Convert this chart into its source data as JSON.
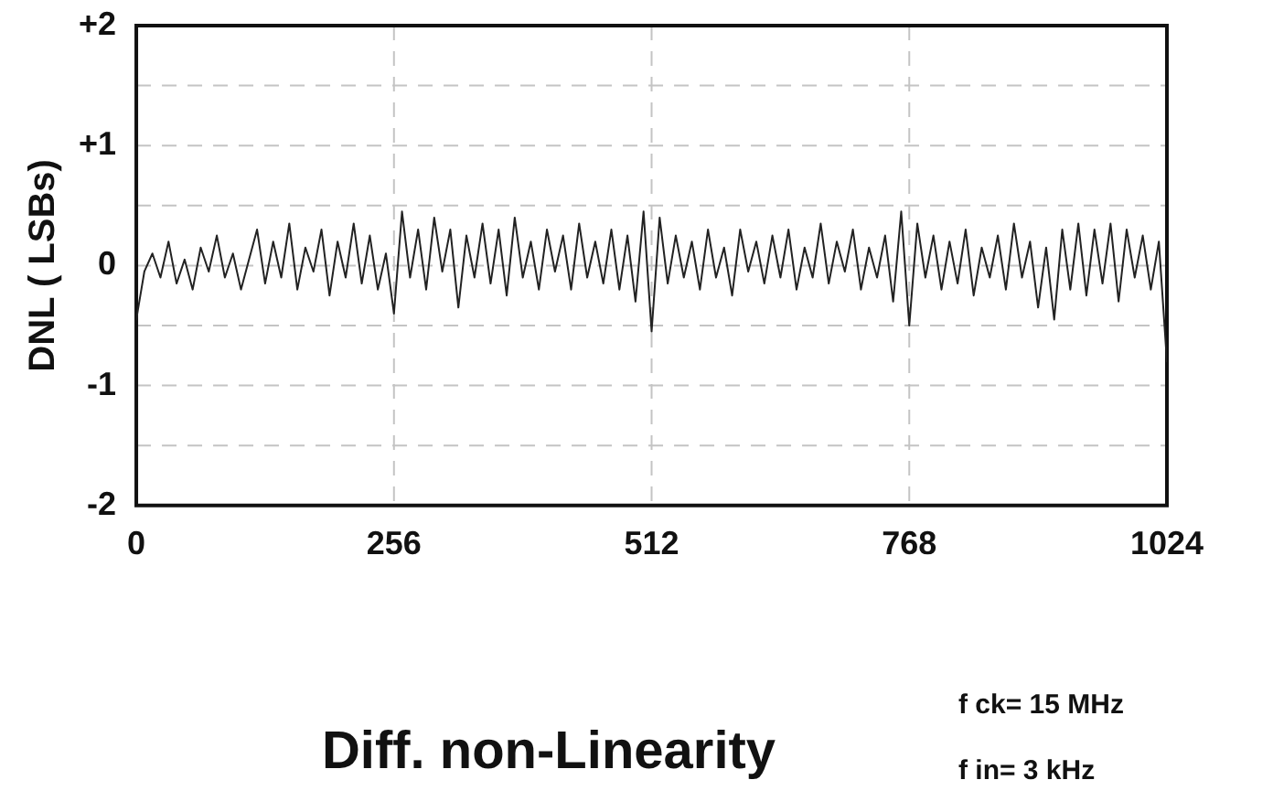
{
  "chart_data": {
    "type": "line",
    "title": "Diff. non-Linearity",
    "ylabel": "DNL ( LSBs)",
    "annotations": [
      "f ck= 15 MHz",
      "f in= 3 kHz"
    ],
    "x": [
      0,
      8,
      16,
      24,
      32,
      40,
      48,
      56,
      64,
      72,
      80,
      88,
      96,
      104,
      112,
      120,
      128,
      136,
      144,
      152,
      160,
      168,
      176,
      184,
      192,
      200,
      208,
      216,
      224,
      232,
      240,
      248,
      256,
      264,
      272,
      280,
      288,
      296,
      304,
      312,
      320,
      328,
      336,
      344,
      352,
      360,
      368,
      376,
      384,
      392,
      400,
      408,
      416,
      424,
      432,
      440,
      448,
      456,
      464,
      472,
      480,
      488,
      496,
      504,
      512,
      520,
      528,
      536,
      544,
      552,
      560,
      568,
      576,
      584,
      592,
      600,
      608,
      616,
      624,
      632,
      640,
      648,
      656,
      664,
      672,
      680,
      688,
      696,
      704,
      712,
      720,
      728,
      736,
      744,
      752,
      760,
      768,
      776,
      784,
      792,
      800,
      808,
      816,
      824,
      832,
      840,
      848,
      856,
      864,
      872,
      880,
      888,
      896,
      904,
      912,
      920,
      928,
      936,
      944,
      952,
      960,
      968,
      976,
      984,
      992,
      1000,
      1008,
      1016,
      1024
    ],
    "values": [
      -0.45,
      -0.05,
      0.1,
      -0.1,
      0.2,
      -0.15,
      0.05,
      -0.2,
      0.15,
      -0.05,
      0.25,
      -0.1,
      0.1,
      -0.2,
      0.05,
      0.3,
      -0.15,
      0.2,
      -0.1,
      0.35,
      -0.2,
      0.15,
      -0.05,
      0.3,
      -0.25,
      0.2,
      -0.1,
      0.35,
      -0.15,
      0.25,
      -0.2,
      0.1,
      -0.4,
      0.45,
      -0.1,
      0.3,
      -0.2,
      0.4,
      -0.05,
      0.3,
      -0.35,
      0.25,
      -0.1,
      0.35,
      -0.15,
      0.3,
      -0.25,
      0.4,
      -0.1,
      0.2,
      -0.2,
      0.3,
      -0.05,
      0.25,
      -0.2,
      0.35,
      -0.1,
      0.2,
      -0.15,
      0.3,
      -0.2,
      0.25,
      -0.3,
      0.45,
      -0.55,
      0.4,
      -0.15,
      0.25,
      -0.1,
      0.2,
      -0.2,
      0.3,
      -0.1,
      0.15,
      -0.25,
      0.3,
      -0.05,
      0.2,
      -0.15,
      0.25,
      -0.1,
      0.3,
      -0.2,
      0.15,
      -0.1,
      0.35,
      -0.15,
      0.2,
      -0.05,
      0.3,
      -0.2,
      0.15,
      -0.1,
      0.25,
      -0.3,
      0.45,
      -0.5,
      0.35,
      -0.1,
      0.25,
      -0.2,
      0.2,
      -0.15,
      0.3,
      -0.25,
      0.15,
      -0.1,
      0.25,
      -0.2,
      0.35,
      -0.1,
      0.2,
      -0.35,
      0.15,
      -0.45,
      0.3,
      -0.2,
      0.35,
      -0.25,
      0.3,
      -0.15,
      0.35,
      -0.3,
      0.3,
      -0.1,
      0.25,
      -0.2,
      0.2,
      -0.8
    ],
    "color": "#222222",
    "xlim": [
      0,
      1024
    ],
    "xticks": [
      0,
      256,
      512,
      768,
      1024
    ],
    "ylim": [
      -2,
      2
    ],
    "yticks": [
      {
        "value": -2,
        "label": "-2"
      },
      {
        "value": -1.5,
        "label": null
      },
      {
        "value": -1,
        "label": "-1"
      },
      {
        "value": -0.5,
        "label": null
      },
      {
        "value": 0,
        "label": "0"
      },
      {
        "value": 0.5,
        "label": null
      },
      {
        "value": 1,
        "label": "+1"
      },
      {
        "value": 1.5,
        "label": null
      },
      {
        "value": 2,
        "label": "+2"
      }
    ],
    "grid": true,
    "legend": false,
    "marker": "none",
    "line_style": "solid"
  }
}
